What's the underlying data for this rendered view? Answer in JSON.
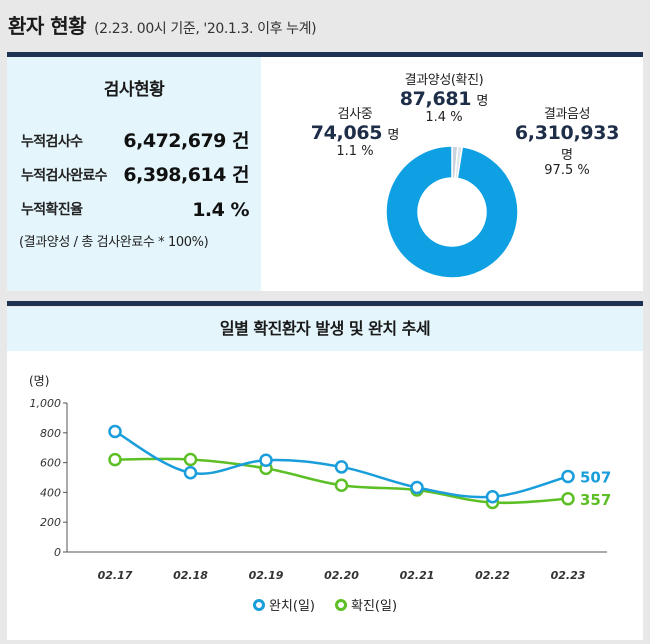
{
  "header": {
    "title": "환자 현황",
    "subtitle": "(2.23. 00시 기준, '20.1.3. 이후 누계)"
  },
  "test_status": {
    "title": "검사현황",
    "rows": [
      {
        "label": "누적검사수",
        "value": "6,472,679 건"
      },
      {
        "label": "누적검사완료수",
        "value": "6,398,614 건"
      },
      {
        "label": "누적확진율",
        "value": "1.4 %"
      }
    ],
    "note": "(결과양성 / 총 검사완료수 * 100%)"
  },
  "donut": {
    "segments": [
      {
        "label": "결과양성(확진)",
        "number": "87,681",
        "unit": "명",
        "percent": "1.4 %",
        "share": 1.4,
        "color": "#c9d3dd"
      },
      {
        "label": "검사중",
        "number": "74,065",
        "unit": "명",
        "percent": "1.1 %",
        "share": 1.1,
        "color": "#dde3ea"
      },
      {
        "label": "결과음성",
        "number": "6,310,933",
        "unit": "명",
        "percent": "97.5 %",
        "share": 97.5,
        "color": "#0fa0e3"
      }
    ]
  },
  "chart_section": {
    "title": "일별 확진환자 발생 및 완치 추세"
  },
  "chart_data": {
    "type": "line",
    "ylabel": "(명)",
    "ylim": [
      0,
      1000
    ],
    "yticks": [
      "0",
      "200",
      "400",
      "600",
      "800",
      "1,000"
    ],
    "categories": [
      "02.17",
      "02.18",
      "02.19",
      "02.20",
      "02.21",
      "02.22",
      "02.23"
    ],
    "series": [
      {
        "name": "완치(일)",
        "color": "#1a9ddb",
        "values": [
          809,
          532,
          616,
          571,
          433,
          371,
          507
        ],
        "end_label": "507"
      },
      {
        "name": "확진(일)",
        "color": "#5dbf26",
        "values": [
          620,
          621,
          561,
          448,
          416,
          332,
          357
        ],
        "end_label": "357"
      }
    ],
    "legend": "bottom-center",
    "grid": false
  }
}
